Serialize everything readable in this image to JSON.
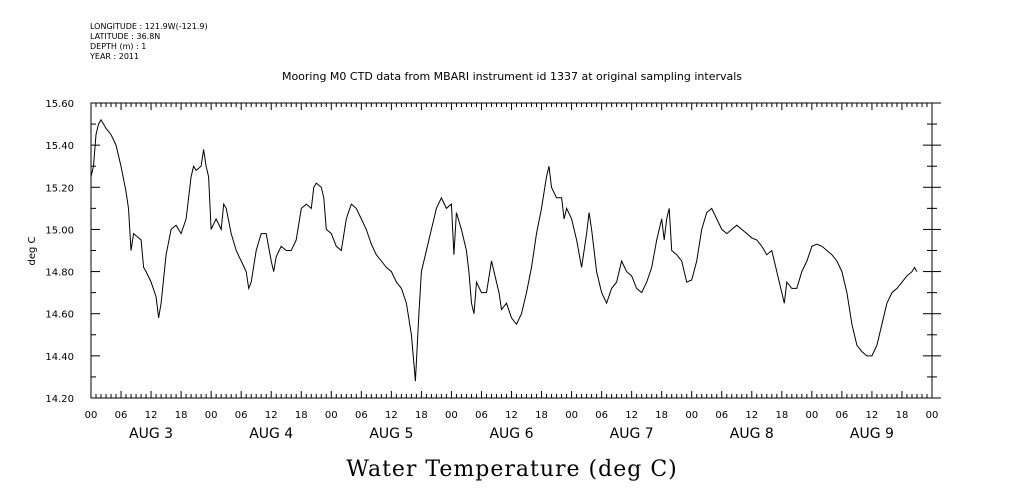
{
  "header": {
    "longitude": "LONGITUDE : 121.9W(-121.9)",
    "latitude": "LATITUDE : 36.8N",
    "depth": "DEPTH (m) : 1",
    "year": "YEAR : 2011"
  },
  "chart_data": {
    "type": "line",
    "title": "Mooring M0 CTD data from MBARI instrument id 1337 at original sampling intervals",
    "bottom_title": "Water Temperature (deg C)",
    "ylabel": "deg C",
    "ylim": [
      14.2,
      15.6
    ],
    "xlim": [
      0,
      168
    ],
    "y_ticks": [
      "14.20",
      "14.40",
      "14.60",
      "14.80",
      "15.00",
      "15.20",
      "15.40",
      "15.60"
    ],
    "y_tick_values": [
      14.2,
      14.4,
      14.6,
      14.8,
      15.0,
      15.2,
      15.4,
      15.6
    ],
    "x_hour_ticks": [
      "00",
      "06",
      "12",
      "18",
      "00",
      "06",
      "12",
      "18",
      "00",
      "06",
      "12",
      "18",
      "00",
      "06",
      "12",
      "18",
      "00",
      "06",
      "12",
      "18",
      "00",
      "06",
      "12",
      "18",
      "00",
      "06",
      "12",
      "18",
      "00"
    ],
    "x_day_labels": [
      "AUG  3",
      "AUG  4",
      "AUG  5",
      "AUG  6",
      "AUG  7",
      "AUG  8",
      "AUG  9"
    ],
    "x_unit": "hours since 00:00 AUG 3",
    "series": [
      {
        "values": [
          [
            0,
            15.25
          ],
          [
            0.5,
            15.3
          ],
          [
            1,
            15.45
          ],
          [
            1.5,
            15.5
          ],
          [
            2,
            15.52
          ],
          [
            3,
            15.48
          ],
          [
            4,
            15.45
          ],
          [
            5,
            15.4
          ],
          [
            6,
            15.3
          ],
          [
            7,
            15.18
          ],
          [
            7.5,
            15.1
          ],
          [
            8,
            14.9
          ],
          [
            8.5,
            14.98
          ],
          [
            9,
            14.97
          ],
          [
            10,
            14.95
          ],
          [
            10.5,
            14.82
          ],
          [
            11,
            14.8
          ],
          [
            12,
            14.75
          ],
          [
            13,
            14.68
          ],
          [
            13.5,
            14.58
          ],
          [
            14,
            14.65
          ],
          [
            15,
            14.88
          ],
          [
            16,
            15.0
          ],
          [
            17,
            15.02
          ],
          [
            18,
            14.98
          ],
          [
            19,
            15.05
          ],
          [
            19.5,
            15.15
          ],
          [
            20,
            15.25
          ],
          [
            20.5,
            15.3
          ],
          [
            21,
            15.28
          ],
          [
            22,
            15.3
          ],
          [
            22.5,
            15.38
          ],
          [
            23,
            15.3
          ],
          [
            23.5,
            15.25
          ],
          [
            24,
            15.0
          ],
          [
            25,
            15.05
          ],
          [
            26,
            15.0
          ],
          [
            26.5,
            15.12
          ],
          [
            27,
            15.1
          ],
          [
            28,
            14.98
          ],
          [
            29,
            14.9
          ],
          [
            30,
            14.85
          ],
          [
            31,
            14.8
          ],
          [
            31.5,
            14.72
          ],
          [
            32,
            14.75
          ],
          [
            33,
            14.9
          ],
          [
            34,
            14.98
          ],
          [
            35,
            14.98
          ],
          [
            36,
            14.85
          ],
          [
            36.5,
            14.8
          ],
          [
            37,
            14.87
          ],
          [
            38,
            14.92
          ],
          [
            39,
            14.9
          ],
          [
            40,
            14.9
          ],
          [
            41,
            14.95
          ],
          [
            42,
            15.1
          ],
          [
            43,
            15.12
          ],
          [
            44,
            15.1
          ],
          [
            44.5,
            15.2
          ],
          [
            45,
            15.22
          ],
          [
            46,
            15.2
          ],
          [
            46.5,
            15.15
          ],
          [
            47,
            15.0
          ],
          [
            48,
            14.98
          ],
          [
            49,
            14.92
          ],
          [
            50,
            14.9
          ],
          [
            51,
            15.05
          ],
          [
            52,
            15.12
          ],
          [
            53,
            15.1
          ],
          [
            54,
            15.05
          ],
          [
            55,
            15.0
          ],
          [
            56,
            14.93
          ],
          [
            57,
            14.88
          ],
          [
            58,
            14.85
          ],
          [
            59,
            14.82
          ],
          [
            60,
            14.8
          ],
          [
            61,
            14.75
          ],
          [
            62,
            14.72
          ],
          [
            63,
            14.65
          ],
          [
            64,
            14.5
          ],
          [
            64.8,
            14.28
          ],
          [
            65.5,
            14.6
          ],
          [
            66,
            14.8
          ],
          [
            67,
            14.9
          ],
          [
            68,
            15.0
          ],
          [
            69,
            15.1
          ],
          [
            70,
            15.15
          ],
          [
            71,
            15.1
          ],
          [
            72,
            15.12
          ],
          [
            72.5,
            14.88
          ],
          [
            73,
            15.08
          ],
          [
            74,
            15.0
          ],
          [
            75,
            14.9
          ],
          [
            75.5,
            14.8
          ],
          [
            76,
            14.65
          ],
          [
            76.5,
            14.6
          ],
          [
            77,
            14.75
          ],
          [
            78,
            14.7
          ],
          [
            79,
            14.7
          ],
          [
            80,
            14.85
          ],
          [
            81,
            14.75
          ],
          [
            81.5,
            14.7
          ],
          [
            82,
            14.62
          ],
          [
            83,
            14.65
          ],
          [
            84,
            14.58
          ],
          [
            85,
            14.55
          ],
          [
            86,
            14.6
          ],
          [
            87,
            14.7
          ],
          [
            88,
            14.82
          ],
          [
            89,
            14.98
          ],
          [
            90,
            15.1
          ],
          [
            91,
            15.25
          ],
          [
            91.5,
            15.3
          ],
          [
            92,
            15.2
          ],
          [
            93,
            15.15
          ],
          [
            94,
            15.15
          ],
          [
            94.5,
            15.05
          ],
          [
            95,
            15.1
          ],
          [
            96,
            15.05
          ],
          [
            97,
            14.95
          ],
          [
            98,
            14.82
          ],
          [
            99,
            14.98
          ],
          [
            99.5,
            15.08
          ],
          [
            100,
            15.0
          ],
          [
            101,
            14.8
          ],
          [
            102,
            14.7
          ],
          [
            103,
            14.65
          ],
          [
            104,
            14.72
          ],
          [
            105,
            14.75
          ],
          [
            106,
            14.85
          ],
          [
            107,
            14.8
          ],
          [
            108,
            14.78
          ],
          [
            109,
            14.72
          ],
          [
            110,
            14.7
          ],
          [
            111,
            14.75
          ],
          [
            112,
            14.82
          ],
          [
            113,
            14.95
          ],
          [
            114,
            15.05
          ],
          [
            114.5,
            14.95
          ],
          [
            115,
            15.05
          ],
          [
            115.5,
            15.1
          ],
          [
            116,
            14.9
          ],
          [
            117,
            14.88
          ],
          [
            118,
            14.85
          ],
          [
            119,
            14.75
          ],
          [
            120,
            14.76
          ],
          [
            121,
            14.85
          ],
          [
            122,
            15.0
          ],
          [
            123,
            15.08
          ],
          [
            124,
            15.1
          ],
          [
            125,
            15.05
          ],
          [
            126,
            15.0
          ],
          [
            127,
            14.98
          ],
          [
            128,
            15.0
          ],
          [
            129,
            15.02
          ],
          [
            130,
            15.0
          ],
          [
            131,
            14.98
          ],
          [
            132,
            14.96
          ],
          [
            133,
            14.95
          ],
          [
            134,
            14.92
          ],
          [
            135,
            14.88
          ],
          [
            136,
            14.9
          ],
          [
            137,
            14.8
          ],
          [
            138,
            14.7
          ],
          [
            138.5,
            14.65
          ],
          [
            139,
            14.75
          ],
          [
            140,
            14.72
          ],
          [
            141,
            14.72
          ],
          [
            142,
            14.8
          ],
          [
            143,
            14.85
          ],
          [
            144,
            14.92
          ],
          [
            145,
            14.93
          ],
          [
            146,
            14.92
          ],
          [
            147,
            14.9
          ],
          [
            148,
            14.88
          ],
          [
            149,
            14.85
          ],
          [
            150,
            14.8
          ],
          [
            151,
            14.7
          ],
          [
            152,
            14.55
          ],
          [
            153,
            14.45
          ],
          [
            154,
            14.42
          ],
          [
            155,
            14.4
          ],
          [
            156,
            14.4
          ],
          [
            157,
            14.45
          ],
          [
            158,
            14.55
          ],
          [
            159,
            14.65
          ],
          [
            160,
            14.7
          ],
          [
            161,
            14.72
          ],
          [
            162,
            14.75
          ],
          [
            163,
            14.78
          ],
          [
            164,
            14.8
          ],
          [
            164.5,
            14.82
          ],
          [
            165,
            14.8
          ]
        ]
      }
    ],
    "grid": false,
    "line_color": "#000000"
  }
}
